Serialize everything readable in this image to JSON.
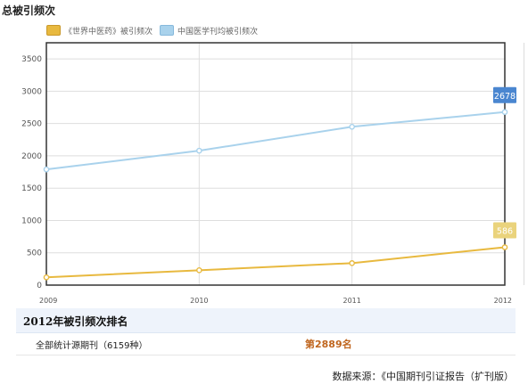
{
  "title": "总被引频次",
  "colors": {
    "series_journal": "#e8b93f",
    "series_average": "#a9d2ec",
    "badge_journal": "#ead37c",
    "badge_average": "#4a86d0",
    "rank_value": "#c0661f"
  },
  "chart_data": {
    "type": "line",
    "title": "总被引频次",
    "xlabel": "",
    "ylabel": "",
    "x": [
      "2009",
      "2010",
      "2011",
      "2012"
    ],
    "ylim": [
      0,
      3750
    ],
    "yticks": [
      "0",
      "500",
      "1000",
      "1500",
      "2000",
      "2500",
      "3000",
      "3500"
    ],
    "grid": true,
    "legend_position": "top-left",
    "series": [
      {
        "name": "《世界中医药》被引频次",
        "values": [
          120,
          230,
          340,
          586
        ],
        "end_label": "586"
      },
      {
        "name": "中国医学刊均被引频次",
        "values": [
          1790,
          2080,
          2450,
          2678
        ],
        "end_label": "2678"
      }
    ]
  },
  "ranking": {
    "header": "2012年被引频次排名",
    "rows": [
      {
        "label": "全部统计源期刊（6159种）",
        "value": "第2889名"
      }
    ]
  },
  "source": "数据来源：《中国期刊引证报告（扩刊版）"
}
